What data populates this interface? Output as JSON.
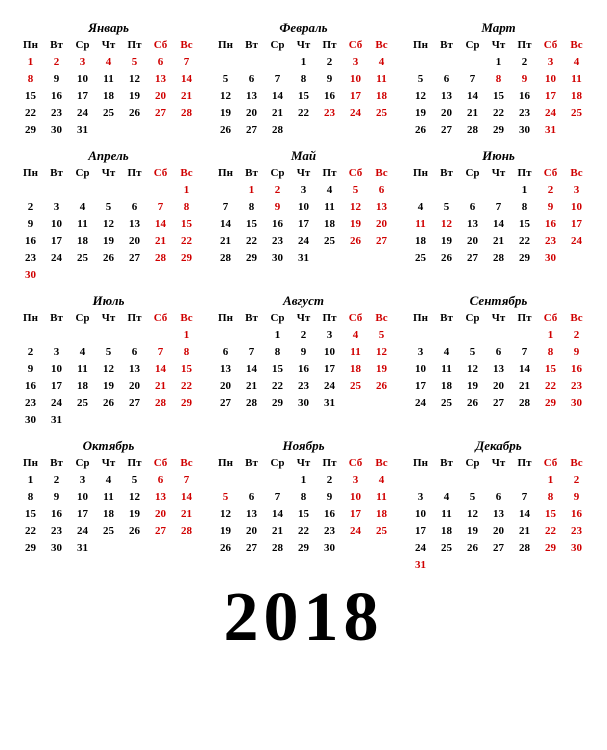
{
  "year": "2018",
  "colors": {
    "normal": "#000000",
    "weekend": "#d00000",
    "holiday": "#d00000",
    "background": "#ffffff"
  },
  "dayHeaders": [
    "Пн",
    "Вт",
    "Ср",
    "Чт",
    "Пт",
    "Сб",
    "Вс"
  ],
  "weekendColumns": [
    5,
    6
  ],
  "months": [
    {
      "name": "Январь",
      "startCol": 0,
      "days": 31,
      "holidays": [
        1,
        2,
        3,
        4,
        5,
        6,
        7,
        8
      ]
    },
    {
      "name": "Февраль",
      "startCol": 3,
      "days": 28,
      "holidays": [
        23
      ]
    },
    {
      "name": "Март",
      "startCol": 3,
      "days": 31,
      "holidays": [
        8,
        9
      ]
    },
    {
      "name": "Апрель",
      "startCol": 6,
      "days": 30,
      "holidays": [
        30
      ]
    },
    {
      "name": "Май",
      "startCol": 1,
      "days": 31,
      "holidays": [
        1,
        2,
        9
      ]
    },
    {
      "name": "Июнь",
      "startCol": 4,
      "days": 30,
      "holidays": [
        11,
        12
      ]
    },
    {
      "name": "Июль",
      "startCol": 6,
      "days": 31,
      "holidays": []
    },
    {
      "name": "Август",
      "startCol": 2,
      "days": 31,
      "holidays": []
    },
    {
      "name": "Сентябрь",
      "startCol": 5,
      "days": 30,
      "holidays": []
    },
    {
      "name": "Октябрь",
      "startCol": 0,
      "days": 31,
      "holidays": []
    },
    {
      "name": "Ноябрь",
      "startCol": 3,
      "days": 30,
      "holidays": [
        5
      ]
    },
    {
      "name": "Декабрь",
      "startCol": 5,
      "days": 31,
      "holidays": [
        31
      ]
    }
  ]
}
